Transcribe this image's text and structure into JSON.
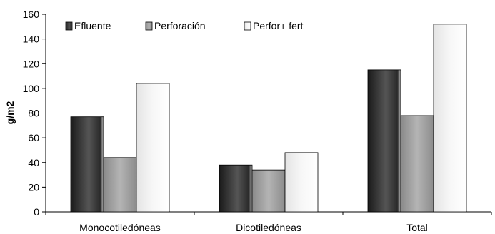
{
  "chart_data": {
    "type": "bar",
    "categories": [
      "Monocotiledóneas",
      "Dicotiledóneas",
      "Total"
    ],
    "series": [
      {
        "name": "Efluente",
        "values": [
          77,
          38,
          115
        ],
        "color_key": "efluente"
      },
      {
        "name": "Perforación",
        "values": [
          44,
          34,
          78
        ],
        "color_key": "perforacion"
      },
      {
        "name": "Perfor+ fert",
        "values": [
          104,
          48,
          152
        ],
        "color_key": "perfor_fert"
      }
    ],
    "title": "",
    "xlabel": "",
    "ylabel": "g/m2",
    "ylim": [
      0,
      160
    ],
    "yticks": [
      0,
      20,
      40,
      60,
      80,
      100,
      120,
      140,
      160
    ],
    "grid": false,
    "legend_position": "top-left",
    "colors": {
      "efluente": [
        "#1a1a1a",
        "#6e6e6e"
      ],
      "perforacion": [
        "#7a7a7a",
        "#c8c8c8"
      ],
      "perfor_fert": [
        "#e6e6e6",
        "#ffffff"
      ]
    }
  }
}
